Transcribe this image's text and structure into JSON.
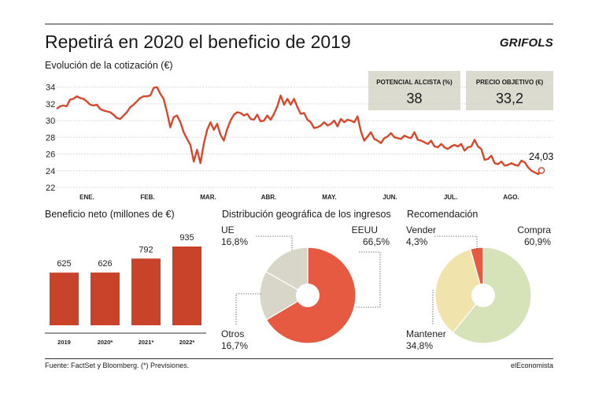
{
  "header": {
    "title": "Repetirá en 2020 el beneficio de 2019",
    "brand": "GRIFOLS",
    "subtitle": "Evolución de la cotización (€)"
  },
  "kpis": [
    {
      "label": "POTENCIAL ALCISTA (%)",
      "value": "38"
    },
    {
      "label": "PRECIO OBJETIVO (€)",
      "value": "33,2"
    }
  ],
  "colors": {
    "red": "#d9472b",
    "salmon": "#e55a40",
    "grey": "#d8d6c9",
    "green": "#d6e2b8",
    "yellow": "#f0e4ac",
    "bar": "#c9432b"
  },
  "chart_data": [
    {
      "type": "line",
      "title": "Evolución de la cotización (€)",
      "x_tick_labels": [
        "ENE.",
        "FEB.",
        "MAR.",
        "ABR.",
        "MAY.",
        "JUN.",
        "JUL.",
        "AGO."
      ],
      "y_ticks": [
        22,
        24,
        26,
        28,
        30,
        32,
        34
      ],
      "ylim": [
        22,
        35
      ],
      "last_value_label": "24,03",
      "values": [
        31.4,
        31.7,
        31.8,
        31.7,
        32.5,
        32.6,
        32.9,
        32.7,
        32.6,
        32.3,
        31.9,
        31.8,
        31.9,
        31.4,
        31.2,
        31.1,
        31.0,
        30.7,
        30.3,
        30.2,
        30.6,
        31.0,
        31.6,
        31.9,
        32.3,
        32.7,
        32.9,
        32.9,
        33.0,
        33.9,
        34.0,
        33.2,
        32.6,
        31.0,
        29.2,
        30.4,
        30.6,
        29.8,
        28.6,
        27.8,
        27.1,
        25.1,
        26.5,
        24.9,
        27.2,
        28.9,
        29.8,
        28.9,
        29.6,
        28.3,
        27.6,
        29.0,
        30.0,
        30.7,
        31.0,
        30.9,
        30.6,
        30.8,
        30.2,
        30.1,
        30.7,
        29.9,
        30.0,
        30.6,
        30.1,
        30.8,
        31.7,
        33.0,
        31.9,
        32.6,
        31.9,
        32.6,
        31.6,
        30.8,
        30.9,
        30.1,
        29.8,
        29.1,
        29.2,
        29.4,
        29.8,
        29.4,
        29.6,
        30.0,
        29.3,
        30.2,
        29.8,
        30.1,
        30.0,
        29.8,
        30.5,
        28.7,
        27.6,
        28.1,
        28.6,
        27.8,
        27.6,
        27.3,
        27.9,
        28.1,
        28.5,
        28.0,
        27.9,
        27.8,
        28.2,
        28.0,
        27.9,
        28.6,
        27.7,
        27.6,
        27.4,
        27.2,
        27.6,
        26.9,
        26.8,
        27.2,
        26.8,
        26.6,
        26.9,
        27.1,
        26.9,
        27.2,
        26.4,
        26.8,
        26.9,
        27.7,
        26.9,
        26.6,
        25.3,
        25.4,
        25.8,
        24.9,
        24.8,
        25.1,
        24.6,
        24.7,
        24.9,
        24.7,
        24.6,
        25.2,
        25.0,
        24.4,
        24.0,
        23.8,
        23.6,
        24.03
      ]
    },
    {
      "type": "bar",
      "title": "Beneficio neto (millones de €)",
      "categories": [
        "2019",
        "2020*",
        "2021*",
        "2022*"
      ],
      "values": [
        625,
        626,
        792,
        935
      ],
      "value_labels": [
        "625",
        "626",
        "792",
        "935"
      ]
    },
    {
      "type": "pie",
      "title": "Distribución geográfica de los ingresos",
      "slices": [
        {
          "name": "EEUU",
          "label": "66,5%",
          "value": 66.5
        },
        {
          "name": "Otros",
          "label": "16,7%",
          "value": 16.7
        },
        {
          "name": "UE",
          "label": "16,8%",
          "value": 16.8
        }
      ]
    },
    {
      "type": "pie",
      "title": "Recomendación",
      "slices": [
        {
          "name": "Compra",
          "label": "60,9%",
          "value": 60.9
        },
        {
          "name": "Mantener",
          "label": "34,8%",
          "value": 34.8
        },
        {
          "name": "Vender",
          "label": "4,3%",
          "value": 4.3
        }
      ]
    }
  ],
  "footer": {
    "source": "Fuente: FactSet y Bloomberg. (*) Previsiones.",
    "credit": "elEconomista"
  }
}
